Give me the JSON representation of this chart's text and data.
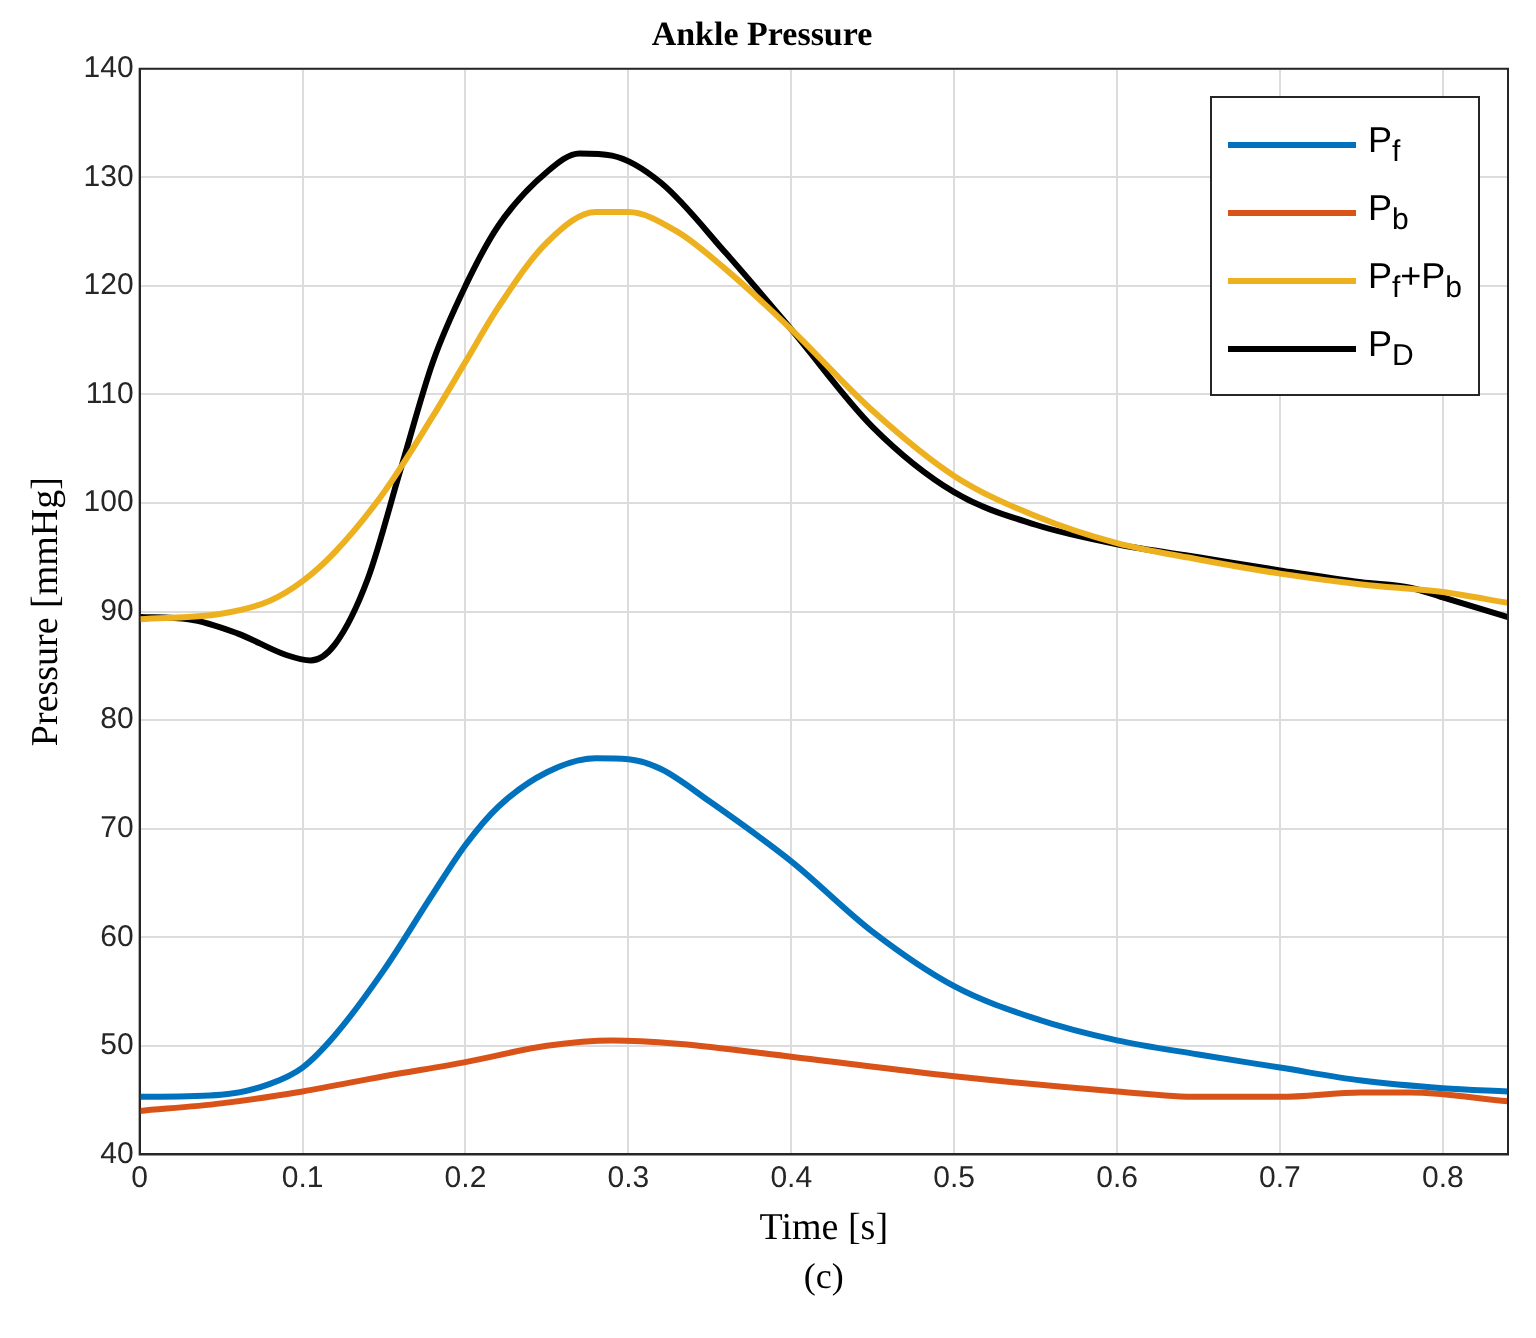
{
  "chart_data": {
    "type": "line",
    "title": "Ankle Pressure",
    "xlabel": "Time [s]",
    "ylabel": "Pressure [mmHg]",
    "annotations": [
      "(c)"
    ],
    "xlim": [
      0,
      0.84
    ],
    "xticks": [
      0,
      0.1,
      0.2,
      0.3,
      0.4,
      0.5,
      0.6,
      0.7,
      0.8
    ],
    "ylim": [
      40,
      140
    ],
    "yticks": [
      40,
      50,
      60,
      70,
      80,
      90,
      100,
      110,
      120,
      130,
      140
    ],
    "grid": true,
    "legend": "top right",
    "marker": "none",
    "line_style": "solid",
    "series": [
      {
        "name": "P$_{f}$",
        "color": "#0072bd",
        "x": [
          0,
          0.05,
          0.08,
          0.1,
          0.12,
          0.15,
          0.18,
          0.2,
          0.22,
          0.25,
          0.28,
          0.3,
          0.32,
          0.35,
          0.4,
          0.45,
          0.5,
          0.55,
          0.6,
          0.65,
          0.7,
          0.75,
          0.8,
          0.84
        ],
        "values": [
          45.3,
          45.5,
          46.5,
          48,
          51,
          57,
          64,
          68.5,
          72,
          75.2,
          76.5,
          76.4,
          75.5,
          72.5,
          67,
          60.5,
          55.5,
          52.5,
          50.5,
          49.2,
          48,
          46.8,
          46.1,
          45.8
        ]
      },
      {
        "name": "P$_{b}$",
        "color": "#d95319",
        "x": [
          0,
          0.05,
          0.1,
          0.15,
          0.2,
          0.25,
          0.29,
          0.33,
          0.4,
          0.5,
          0.6,
          0.65,
          0.7,
          0.75,
          0.78,
          0.84
        ],
        "values": [
          44,
          44.7,
          45.8,
          47.2,
          48.5,
          50,
          50.5,
          50.2,
          49,
          47.2,
          45.8,
          45.3,
          45.3,
          45.7,
          45.7,
          44.9
        ]
      },
      {
        "name": "P$_{f}$+P$_{b}$",
        "color": "#edb120",
        "x": [
          0,
          0.05,
          0.08,
          0.1,
          0.12,
          0.15,
          0.18,
          0.2,
          0.22,
          0.25,
          0.28,
          0.3,
          0.33,
          0.36,
          0.4,
          0.45,
          0.5,
          0.55,
          0.6,
          0.65,
          0.7,
          0.75,
          0.8,
          0.84
        ],
        "values": [
          89.3,
          89.8,
          91,
          92.8,
          95.5,
          101,
          108,
          113,
          118,
          124,
          126.8,
          126.8,
          125,
          121.5,
          116,
          108.5,
          102.5,
          98.8,
          96.3,
          94.8,
          93.5,
          92.5,
          91.8,
          90.8
        ]
      },
      {
        "name": "P$_{D}$",
        "color": "#000000",
        "x": [
          0,
          0.03,
          0.06,
          0.09,
          0.105,
          0.12,
          0.14,
          0.16,
          0.18,
          0.2,
          0.22,
          0.25,
          0.27,
          0.29,
          0.32,
          0.36,
          0.4,
          0.45,
          0.5,
          0.55,
          0.6,
          0.65,
          0.7,
          0.75,
          0.78,
          0.8,
          0.84
        ],
        "values": [
          89.5,
          89.3,
          88,
          86,
          85.5,
          87,
          93,
          103,
          113,
          120,
          125.5,
          130.5,
          132.2,
          132,
          129.5,
          123,
          116,
          107,
          101,
          98,
          96.2,
          95,
          93.8,
          92.7,
          92.2,
          91.3,
          89.5
        ]
      }
    ]
  }
}
